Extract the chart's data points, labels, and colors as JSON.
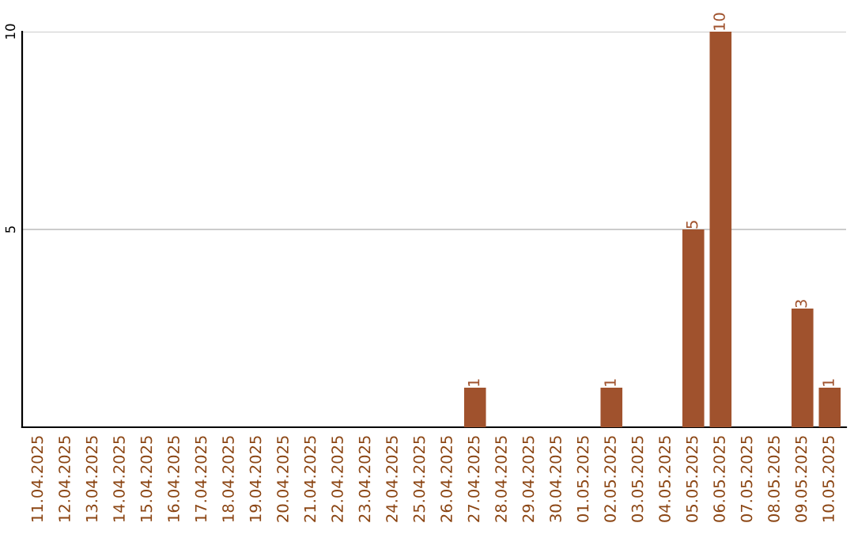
{
  "chart_data": {
    "type": "bar",
    "categories": [
      "11.04.2025",
      "12.04.2025",
      "13.04.2025",
      "14.04.2025",
      "15.04.2025",
      "16.04.2025",
      "17.04.2025",
      "18.04.2025",
      "19.04.2025",
      "20.04.2025",
      "21.04.2025",
      "22.04.2025",
      "23.04.2025",
      "24.04.2025",
      "25.04.2025",
      "26.04.2025",
      "27.04.2025",
      "28.04.2025",
      "29.04.2025",
      "30.04.2025",
      "01.05.2025",
      "02.05.2025",
      "03.05.2025",
      "04.05.2025",
      "05.05.2025",
      "06.05.2025",
      "07.05.2025",
      "08.05.2025",
      "09.05.2025",
      "10.05.2025"
    ],
    "values": [
      0,
      0,
      0,
      0,
      0,
      0,
      0,
      0,
      0,
      0,
      0,
      0,
      0,
      0,
      0,
      0,
      1,
      0,
      0,
      0,
      0,
      1,
      0,
      0,
      5,
      10,
      0,
      0,
      3,
      1
    ],
    "value_labels": [
      null,
      null,
      null,
      null,
      null,
      null,
      null,
      null,
      null,
      null,
      null,
      null,
      null,
      null,
      null,
      null,
      "1",
      null,
      null,
      null,
      null,
      "1",
      null,
      null,
      "5",
      "10",
      null,
      null,
      "3",
      "1"
    ],
    "color": "#a0522d",
    "ylim": [
      0,
      10
    ],
    "yticks": [
      5,
      10
    ],
    "grid": "y"
  }
}
